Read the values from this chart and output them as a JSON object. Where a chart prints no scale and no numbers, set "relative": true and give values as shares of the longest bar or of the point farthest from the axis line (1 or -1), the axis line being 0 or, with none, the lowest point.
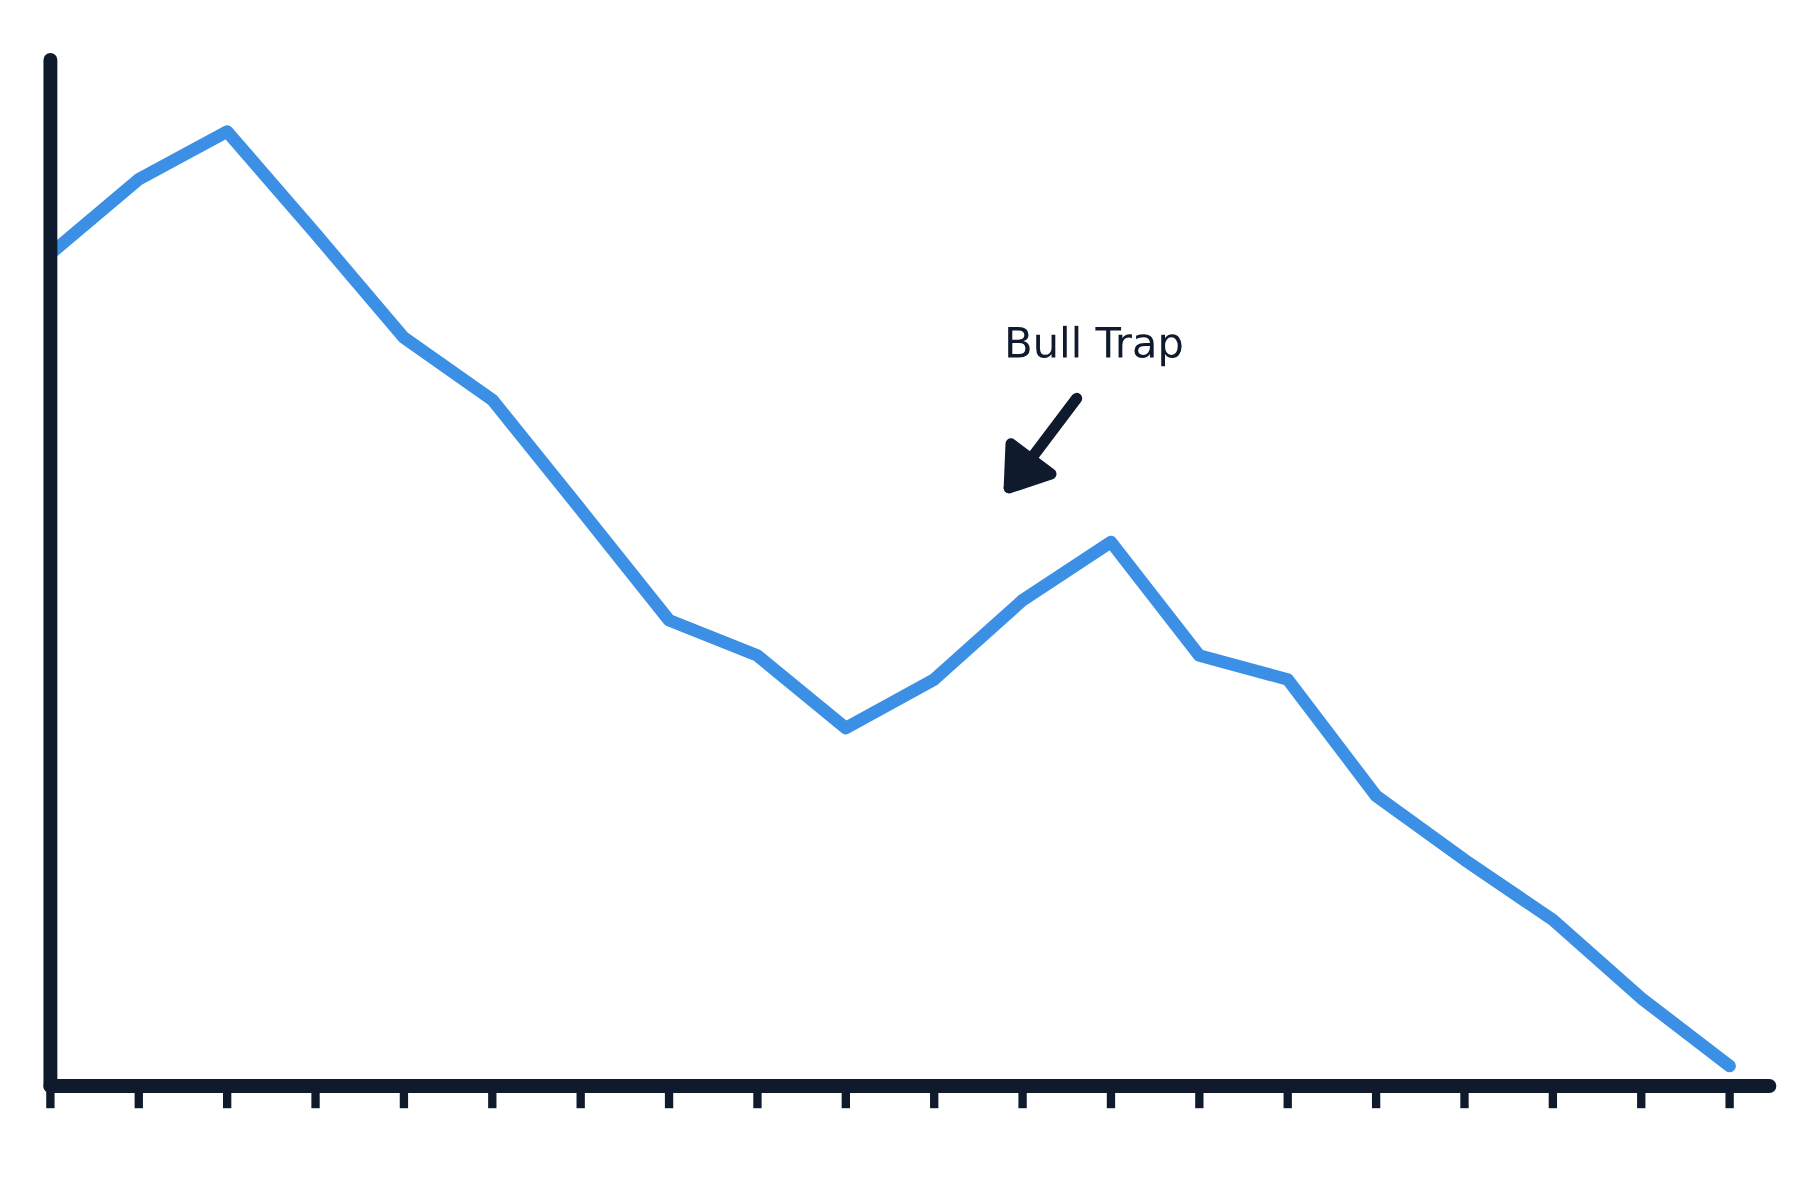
{
  "chart_data": {
    "type": "line",
    "relative": true,
    "categories": [
      null,
      null,
      null,
      null,
      null,
      null,
      null,
      null,
      null,
      null,
      null,
      null,
      null,
      null,
      null,
      null,
      null,
      null,
      null,
      null
    ],
    "series": [
      {
        "color": "#3b8fe5",
        "values": [
          0.872,
          0.95,
          1,
          0.893,
          0.784,
          0.719,
          0.604,
          0.488,
          0.451,
          0.375,
          0.426,
          0.509,
          0.57,
          0.451,
          0.426,
          0.304,
          0.237,
          0.174,
          0.092,
          0.021
        ]
      }
    ],
    "annotations": [
      "Bull Trap"
    ],
    "grid": false,
    "legend": false,
    "marker": "none",
    "line_style": "solid"
  }
}
